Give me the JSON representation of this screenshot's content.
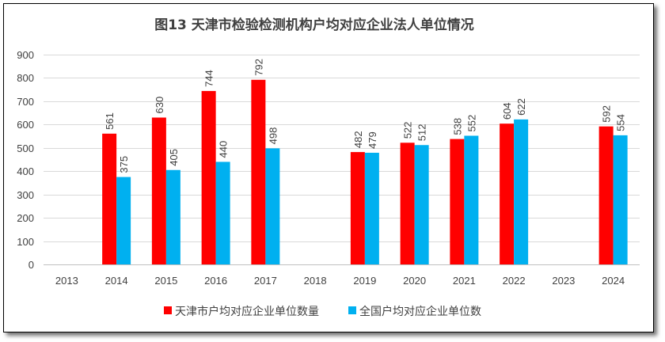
{
  "chart_data": {
    "type": "bar",
    "title": "图13 天津市检验检测机构户均对应企业法人单位情况",
    "xlabel": "",
    "ylabel": "",
    "categories": [
      "2013",
      "2014",
      "2015",
      "2016",
      "2017",
      "2018",
      "2019",
      "2020",
      "2021",
      "2022",
      "2023",
      "2024"
    ],
    "series": [
      {
        "name": "天津市户均对应企业单位数量",
        "color": "#FF0000",
        "values": [
          null,
          561,
          630,
          744,
          792,
          null,
          482,
          522,
          538,
          604,
          null,
          592
        ]
      },
      {
        "name": "全国户均对应企业单位数",
        "color": "#00B0F0",
        "values": [
          null,
          375,
          405,
          440,
          498,
          null,
          479,
          512,
          552,
          622,
          null,
          554
        ]
      }
    ],
    "ylim": [
      0,
      900
    ],
    "yticks": [
      0,
      100,
      200,
      300,
      400,
      500,
      600,
      700,
      800,
      900
    ],
    "grid": true,
    "legend": "bottom",
    "data_labels": true
  }
}
